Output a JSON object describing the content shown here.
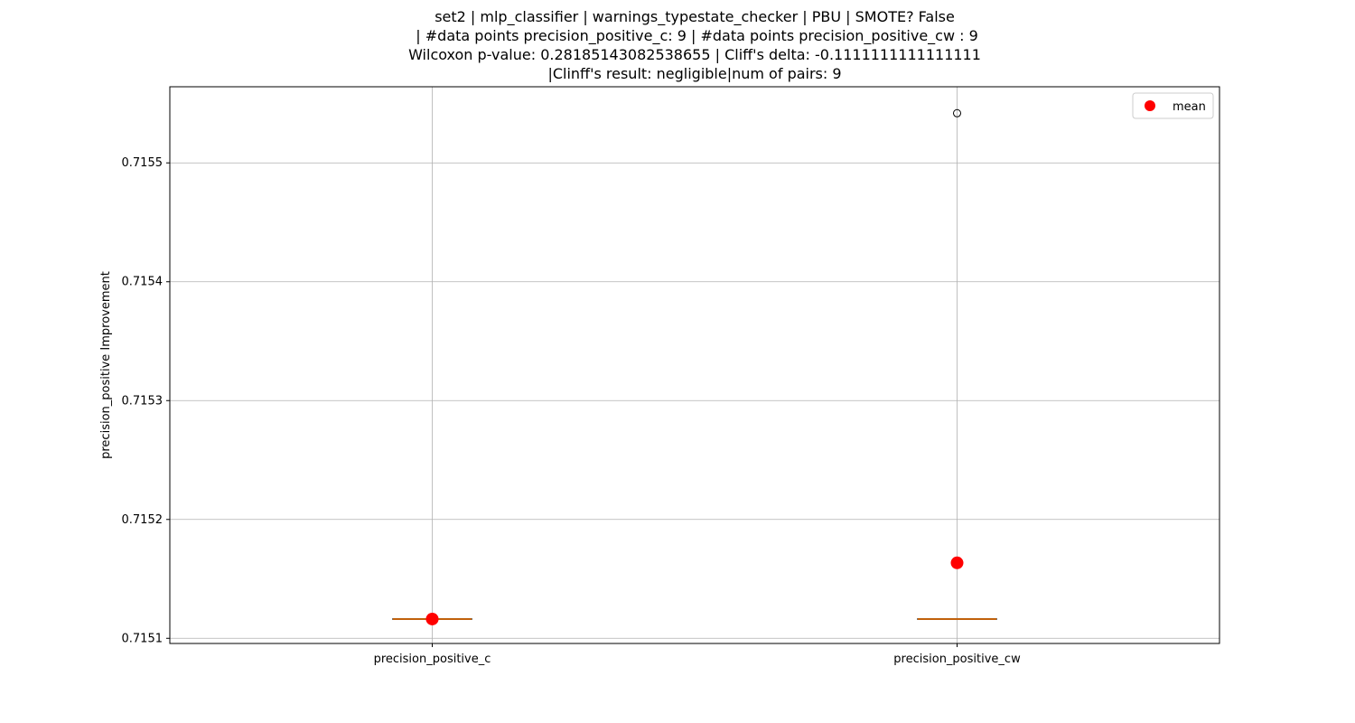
{
  "chart_data": {
    "type": "box",
    "title_lines": [
      "set2 | mlp_classifier | warnings_typestate_checker | PBU | SMOTE? False",
      " | #data points precision_positive_c: 9 | #data points precision_positive_cw : 9",
      "Wilcoxon p-value: 0.28185143082538655 | Cliff's delta: -0.1111111111111111",
      "|Clinff's result: negligible|num of pairs: 9"
    ],
    "ylabel": "precision_positive Improvement",
    "xlabel": "",
    "categories": [
      "precision_positive_c",
      "precision_positive_cw"
    ],
    "ylim": [
      0.71509565,
      0.71556405
    ],
    "yticks": [
      0.7151,
      0.7152,
      0.7153,
      0.7154,
      0.7155
    ],
    "ytick_labels": [
      "0.7151",
      "0.7152",
      "0.7153",
      "0.7154",
      "0.7155"
    ],
    "grid": true,
    "legend": {
      "position": "top-right",
      "entries": [
        {
          "label": "mean",
          "color": "#ff0000"
        }
      ]
    },
    "boxes": [
      {
        "category": "precision_positive_c",
        "q1": 0.7151162,
        "median": 0.7151162,
        "q3": 0.7151162,
        "whisker_low": 0.7151162,
        "whisker_high": 0.7151162,
        "mean": 0.7151162,
        "outliers": []
      },
      {
        "category": "precision_positive_cw",
        "q1": 0.7151162,
        "median": 0.7151162,
        "q3": 0.7151162,
        "whisker_low": 0.7151162,
        "whisker_high": 0.7151162,
        "mean": 0.7151635,
        "outliers": [
          0.7155418
        ]
      }
    ],
    "colors": {
      "box": "#000000",
      "median": "#ff7f0e",
      "mean": "#ff0000",
      "grid": "#b0b0b0"
    }
  }
}
